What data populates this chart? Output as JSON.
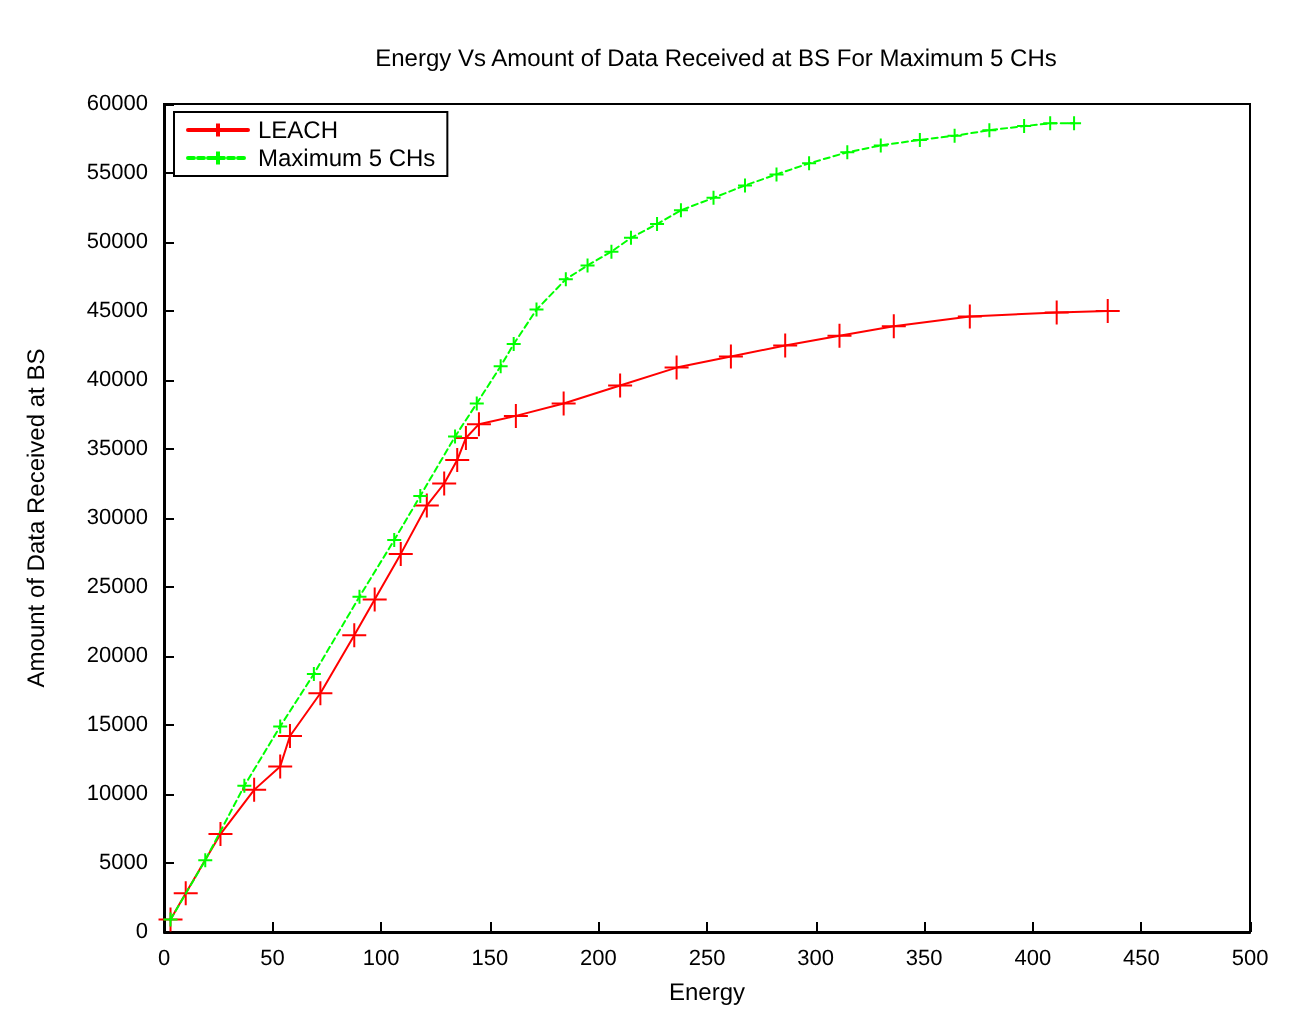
{
  "chart_data": {
    "type": "line",
    "title": "Energy Vs Amount of Data Received at BS For Maximum 5 CHs",
    "xlabel": "Energy",
    "ylabel": "Amount of Data Received at BS",
    "xlim": [
      0,
      500
    ],
    "xticks": [
      0,
      50,
      100,
      150,
      200,
      250,
      300,
      350,
      400,
      450,
      500
    ],
    "ylim": [
      0,
      60000
    ],
    "yticks": [
      0,
      5000,
      10000,
      15000,
      20000,
      25000,
      30000,
      35000,
      40000,
      45000,
      50000,
      55000,
      60000
    ],
    "grid": false,
    "legend": "top left",
    "series": [
      {
        "name": "LEACH",
        "color": "#ff0000",
        "marker": "cross",
        "line_style": "solid",
        "x": [
          3,
          10,
          26,
          41.5,
          53.5,
          58,
          72,
          87.6,
          97,
          109,
          121,
          129,
          135,
          139,
          145,
          162,
          184,
          210,
          236,
          261,
          286,
          311,
          336,
          371,
          411,
          434.5
        ],
        "values": [
          900,
          2800,
          7100,
          10300,
          12000,
          14200,
          17300,
          21500,
          24100,
          27400,
          30900,
          32500,
          34200,
          35800,
          36800,
          37400,
          38300,
          39600,
          40900,
          41700,
          42500,
          43200,
          43900,
          44600,
          44900,
          45000
        ]
      },
      {
        "name": "Maximum 5 CHs",
        "color": "#00ff00",
        "marker": "cross",
        "line_style": "dashed",
        "x": [
          3,
          19,
          37,
          53.5,
          69,
          90,
          106,
          118,
          134,
          144,
          155,
          161,
          171.5,
          185,
          195,
          206,
          215,
          227,
          238,
          253,
          267.5,
          282,
          297,
          314.6,
          330,
          348,
          364,
          380,
          396,
          408,
          419
        ],
        "values": [
          900,
          5200,
          10600,
          14900,
          18700,
          24300,
          28400,
          31600,
          35900,
          38300,
          41000,
          42600,
          45100,
          47300,
          48300,
          49300,
          50300,
          51300,
          52300,
          53200,
          54100,
          54900,
          55700,
          56500,
          57000,
          57400,
          57700,
          58100,
          58400,
          58600,
          58600
        ]
      }
    ]
  }
}
